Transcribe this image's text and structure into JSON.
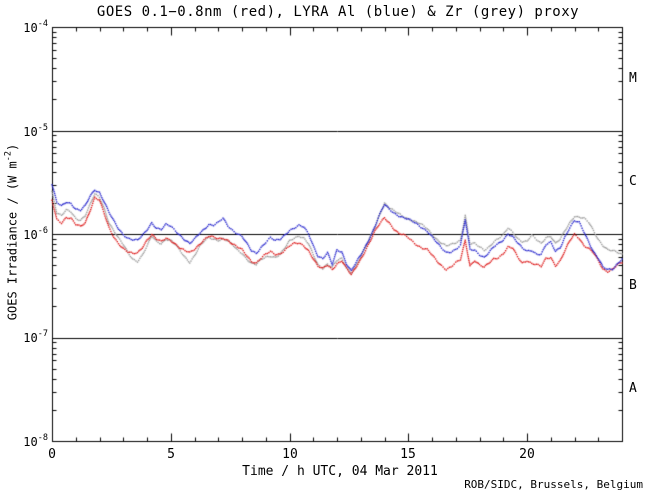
{
  "chart_data": {
    "type": "line",
    "title": "GOES 0.1−0.8nm (red), LYRA Al (blue) & Zr (grey) proxy",
    "xlabel": "Time / h UTC, 04 Mar 2011",
    "ylabel": "GOES Irradiance / (W m-2)",
    "ylabel_parts": {
      "pre": "GOES Irradiance / (W m",
      "sup": "-2",
      "post": ")"
    },
    "footer": "ROB/SIDC, Brussels, Belgium",
    "xlim": [
      0,
      24
    ],
    "ylim": [
      1e-08,
      0.0001
    ],
    "y_scale": "log",
    "grid": false,
    "legend_position": "encoded-in-title-colors",
    "hlines": [
      1e-05,
      1e-06,
      1e-07
    ],
    "x_major_ticks": [
      0,
      5,
      10,
      15,
      20
    ],
    "x_tick_labels": [
      "0",
      "5",
      "10",
      "15",
      "20"
    ],
    "x_minor_step": 1,
    "y_tick_labels": [
      {
        "base": "10",
        "exp": "-4"
      },
      {
        "base": "10",
        "exp": "-5"
      },
      {
        "base": "10",
        "exp": "-6"
      },
      {
        "base": "10",
        "exp": "-7"
      },
      {
        "base": "10",
        "exp": "-8"
      }
    ],
    "class_labels": [
      "M",
      "C",
      "B",
      "A"
    ],
    "x_start": 0,
    "x_step": 0.2,
    "scale": 1e-06,
    "series": [
      {
        "name": "GOES 0.1-0.8nm",
        "color": "#dd1a1a",
        "values": [
          2.1,
          1.4,
          1.3,
          1.45,
          1.4,
          1.22,
          1.18,
          1.3,
          1.7,
          2.25,
          2.1,
          1.55,
          1.15,
          0.95,
          0.82,
          0.72,
          0.66,
          0.64,
          0.66,
          0.75,
          0.88,
          0.98,
          0.88,
          0.84,
          0.92,
          0.88,
          0.8,
          0.72,
          0.68,
          0.66,
          0.72,
          0.8,
          0.88,
          0.94,
          0.92,
          0.9,
          0.92,
          0.88,
          0.8,
          0.74,
          0.7,
          0.62,
          0.55,
          0.53,
          0.58,
          0.63,
          0.67,
          0.64,
          0.65,
          0.7,
          0.76,
          0.8,
          0.81,
          0.78,
          0.7,
          0.58,
          0.48,
          0.46,
          0.5,
          0.46,
          0.52,
          0.55,
          0.46,
          0.4,
          0.48,
          0.58,
          0.7,
          0.85,
          1.05,
          1.25,
          1.45,
          1.3,
          1.12,
          1.0,
          0.97,
          0.92,
          0.85,
          0.78,
          0.73,
          0.7,
          0.62,
          0.55,
          0.5,
          0.46,
          0.48,
          0.52,
          0.56,
          0.87,
          0.5,
          0.56,
          0.5,
          0.47,
          0.52,
          0.58,
          0.6,
          0.65,
          0.74,
          0.72,
          0.6,
          0.53,
          0.56,
          0.52,
          0.5,
          0.48,
          0.58,
          0.6,
          0.5,
          0.55,
          0.68,
          0.85,
          1.0,
          0.92,
          0.78,
          0.72,
          0.65,
          0.55,
          0.46,
          0.44,
          0.46,
          0.5,
          0.52
        ]
      },
      {
        "name": "LYRA Al proxy",
        "color": "#2424cc",
        "values": [
          3.0,
          2.0,
          1.85,
          2.05,
          2.0,
          1.75,
          1.68,
          1.85,
          2.3,
          2.7,
          2.55,
          2.05,
          1.6,
          1.32,
          1.12,
          1.0,
          0.92,
          0.88,
          0.86,
          0.95,
          1.1,
          1.3,
          1.15,
          1.1,
          1.22,
          1.18,
          1.08,
          0.98,
          0.88,
          0.8,
          0.88,
          1.0,
          1.12,
          1.25,
          1.22,
          1.28,
          1.4,
          1.2,
          1.1,
          1.02,
          0.95,
          0.8,
          0.68,
          0.65,
          0.75,
          0.84,
          0.92,
          0.85,
          0.88,
          0.98,
          1.1,
          1.15,
          1.2,
          1.15,
          1.0,
          0.78,
          0.62,
          0.58,
          0.65,
          0.5,
          0.7,
          0.68,
          0.52,
          0.44,
          0.52,
          0.62,
          0.76,
          0.95,
          1.2,
          1.55,
          1.9,
          1.72,
          1.6,
          1.52,
          1.45,
          1.38,
          1.3,
          1.22,
          1.15,
          1.08,
          0.95,
          0.82,
          0.72,
          0.66,
          0.68,
          0.72,
          0.78,
          1.36,
          0.7,
          0.7,
          0.64,
          0.6,
          0.66,
          0.74,
          0.8,
          0.88,
          1.02,
          0.95,
          0.82,
          0.72,
          0.68,
          0.7,
          0.65,
          0.64,
          0.78,
          0.82,
          0.68,
          0.75,
          0.95,
          1.15,
          1.32,
          1.28,
          1.05,
          0.85,
          0.68,
          0.58,
          0.47,
          0.45,
          0.46,
          0.52,
          0.58
        ]
      },
      {
        "name": "LYRA Zr proxy",
        "color": "#9a9a9a",
        "values": [
          2.6,
          1.62,
          1.5,
          1.68,
          1.62,
          1.42,
          1.38,
          1.52,
          1.9,
          2.4,
          2.25,
          1.78,
          1.3,
          1.08,
          0.9,
          0.78,
          0.66,
          0.58,
          0.55,
          0.62,
          0.75,
          0.95,
          0.85,
          0.82,
          0.9,
          0.86,
          0.78,
          0.68,
          0.6,
          0.54,
          0.62,
          0.74,
          0.84,
          0.92,
          0.9,
          0.88,
          0.9,
          0.85,
          0.78,
          0.7,
          0.66,
          0.58,
          0.52,
          0.5,
          0.56,
          0.6,
          0.62,
          0.6,
          0.63,
          0.72,
          0.85,
          0.92,
          0.97,
          0.92,
          0.8,
          0.62,
          0.5,
          0.47,
          0.52,
          0.48,
          0.55,
          0.57,
          0.47,
          0.42,
          0.5,
          0.6,
          0.74,
          0.92,
          1.18,
          1.58,
          2.0,
          1.78,
          1.65,
          1.56,
          1.48,
          1.42,
          1.35,
          1.28,
          1.2,
          1.12,
          1.0,
          0.9,
          0.82,
          0.76,
          0.78,
          0.82,
          0.88,
          1.53,
          0.8,
          0.8,
          0.74,
          0.7,
          0.76,
          0.85,
          0.9,
          0.97,
          1.13,
          1.05,
          0.92,
          0.85,
          0.84,
          0.96,
          0.88,
          0.82,
          0.94,
          0.95,
          0.8,
          0.88,
          1.08,
          1.3,
          1.5,
          1.45,
          1.4,
          1.28,
          1.08,
          0.9,
          0.78,
          0.7,
          0.68,
          0.66,
          0.64
        ]
      }
    ]
  }
}
